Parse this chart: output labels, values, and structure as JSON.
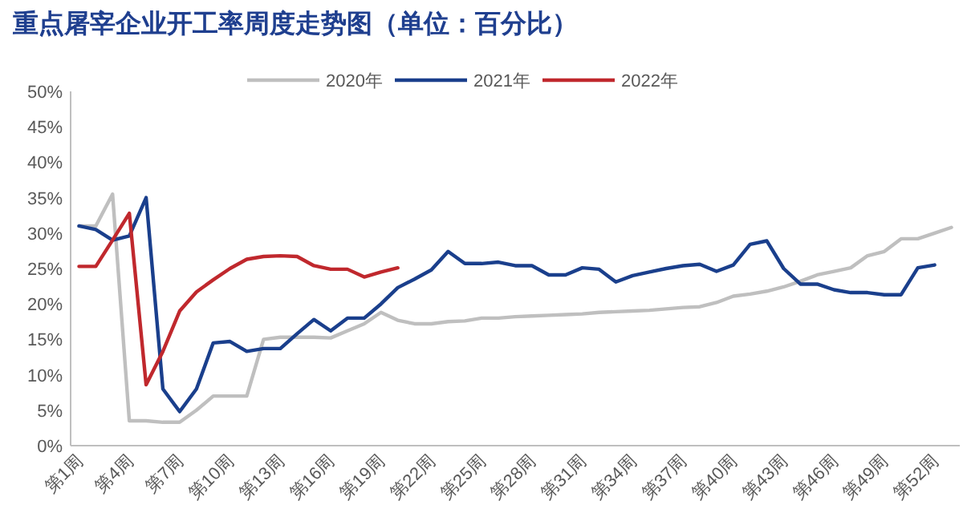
{
  "chart_data": {
    "type": "line",
    "title": "重点屠宰企业开工率周度走势图（单位：百分比）",
    "categories": [
      "第1周",
      null,
      null,
      "第4周",
      null,
      null,
      "第7周",
      null,
      null,
      "第10周",
      null,
      null,
      "第13周",
      null,
      null,
      "第16周",
      null,
      null,
      "第19周",
      null,
      null,
      "第22周",
      null,
      null,
      "第25周",
      null,
      null,
      "第28周",
      null,
      null,
      "第31周",
      null,
      null,
      "第34周",
      null,
      null,
      "第37周",
      null,
      null,
      "第40周",
      null,
      null,
      "第43周",
      null,
      null,
      "第46周",
      null,
      null,
      "第49周",
      null,
      null,
      "第52周",
      null
    ],
    "series": [
      {
        "name": "2020年",
        "color": "#bfbfbf",
        "values": [
          31,
          31,
          35.5,
          3.5,
          3.5,
          3.3,
          3.3,
          5,
          7,
          7,
          7,
          15,
          15.3,
          15.3,
          15.3,
          15.2,
          16.2,
          17.2,
          18.8,
          17.7,
          17.2,
          17.2,
          17.5,
          17.6,
          18,
          18,
          18.2,
          18.3,
          18.4,
          18.5,
          18.6,
          18.8,
          18.9,
          19,
          19.1,
          19.3,
          19.5,
          19.6,
          20.2,
          21.1,
          21.4,
          21.8,
          22.4,
          23.2,
          24.1,
          24.6,
          25.1,
          26.8,
          27.4,
          29.2,
          29.2,
          30,
          30.8
        ]
      },
      {
        "name": "2021年",
        "color": "#1a3f8c",
        "values": [
          31,
          30.5,
          29,
          29.6,
          35,
          8,
          4.8,
          8,
          14.5,
          14.7,
          13.3,
          13.7,
          13.7,
          15.8,
          17.8,
          16.2,
          18,
          18,
          20,
          22.3,
          23.5,
          24.8,
          27.4,
          25.7,
          25.7,
          25.9,
          25.4,
          25.4,
          24.1,
          24.1,
          25.1,
          24.9,
          23.1,
          24,
          24.5,
          25,
          25.4,
          25.6,
          24.6,
          25.5,
          28.4,
          28.9,
          25,
          22.8,
          22.8,
          22,
          21.6,
          21.6,
          21.3,
          21.3,
          25.1,
          25.5,
          null
        ]
      },
      {
        "name": "2022年",
        "color": "#c0282d",
        "values": [
          25.3,
          25.3,
          29,
          32.8,
          8.6,
          13.3,
          19,
          21.7,
          23.4,
          25,
          26.3,
          26.7,
          26.8,
          26.7,
          25.4,
          24.9,
          24.9,
          23.8,
          24.5,
          25.1,
          null,
          null,
          null,
          null,
          null,
          null,
          null,
          null,
          null,
          null,
          null,
          null,
          null,
          null,
          null,
          null,
          null,
          null,
          null,
          null,
          null,
          null,
          null,
          null,
          null,
          null,
          null,
          null,
          null,
          null,
          null,
          null,
          null
        ]
      }
    ],
    "ylim": [
      0,
      50
    ],
    "yticks": [
      {
        "value": 0,
        "label": "0%"
      },
      {
        "value": 5,
        "label": "5%"
      },
      {
        "value": 10,
        "label": "10%"
      },
      {
        "value": 15,
        "label": "15%"
      },
      {
        "value": 20,
        "label": "20%"
      },
      {
        "value": 25,
        "label": "25%"
      },
      {
        "value": 30,
        "label": "30%"
      },
      {
        "value": 35,
        "label": "35%"
      },
      {
        "value": 40,
        "label": "40%"
      },
      {
        "value": 45,
        "label": "45%"
      },
      {
        "value": 50,
        "label": "50%"
      }
    ],
    "legend": "top"
  }
}
